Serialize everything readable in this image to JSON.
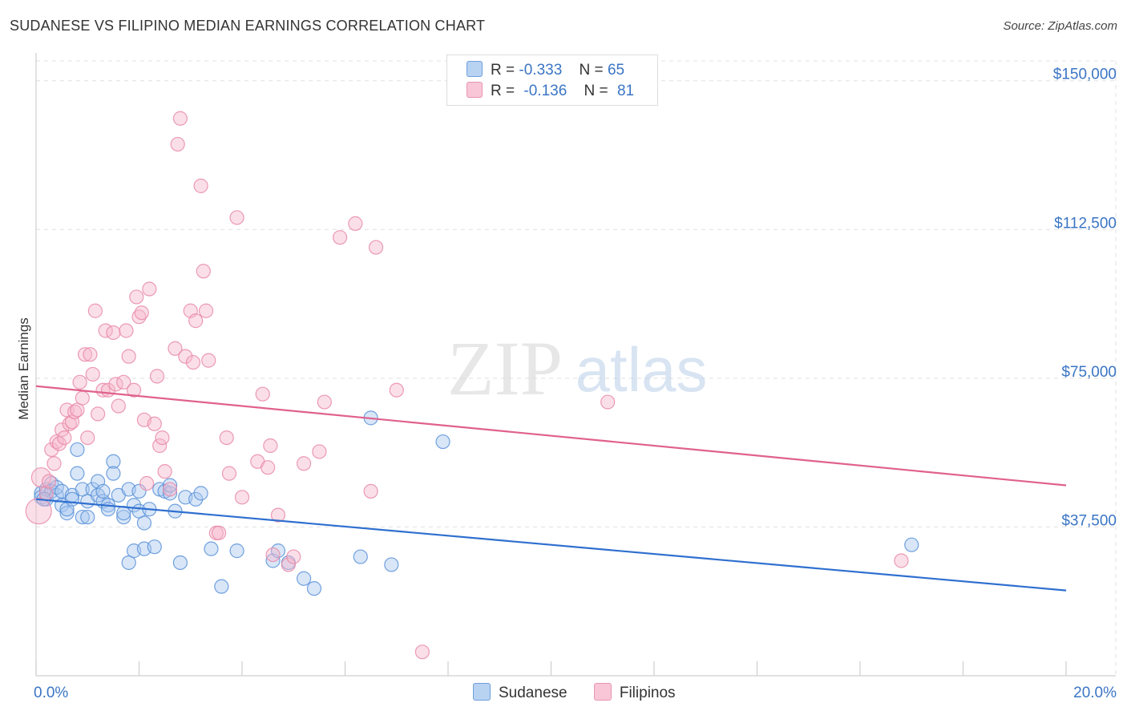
{
  "header": {
    "title": "SUDANESE VS FILIPINO MEDIAN EARNINGS CORRELATION CHART",
    "source": "Source: ZipAtlas.com"
  },
  "watermark": {
    "zip": "ZIP",
    "atlas": "atlas"
  },
  "legend": {
    "r_label": "R =",
    "n_label": "N =",
    "sudanese": {
      "r": "-0.333",
      "n": "65"
    },
    "filipinos": {
      "r": "-0.136",
      "n": "81"
    }
  },
  "colors": {
    "sudanese_fill": "#a8c8f0",
    "sudanese_stroke": "#5b92d8",
    "sudanese_line": "#2f6fcf",
    "filipino_fill": "#f6b8cc",
    "filipino_stroke": "#e88aa8",
    "filipino_line": "#e0618e",
    "axis_text": "#3a75c4",
    "grid": "#e0e0e0"
  },
  "chart_data": {
    "type": "scatter",
    "title": "SUDANESE VS FILIPINO MEDIAN EARNINGS CORRELATION CHART",
    "xlabel": "",
    "ylabel": "Median Earnings",
    "xlim": [
      0,
      20
    ],
    "ylim": [
      0,
      155000
    ],
    "x_tick_labels": [
      "0.0%",
      "20.0%"
    ],
    "y_ticks": [
      37500,
      75000,
      112500,
      150000
    ],
    "y_tick_labels": [
      "$37,500",
      "$75,000",
      "$112,500",
      "$150,000"
    ],
    "grid": true,
    "legend_position": "top-center",
    "series": [
      {
        "name": "Sudanese",
        "trend": {
          "x": [
            0,
            20
          ],
          "y": [
            44500,
            21500
          ]
        },
        "points": [
          [
            0.1,
            46000
          ],
          [
            0.1,
            45000
          ],
          [
            0.2,
            44500
          ],
          [
            0.2,
            47000
          ],
          [
            0.3,
            48500
          ],
          [
            0.3,
            46500
          ],
          [
            0.4,
            45500
          ],
          [
            0.4,
            47500
          ],
          [
            0.5,
            46500
          ],
          [
            0.5,
            43000
          ],
          [
            0.6,
            41000
          ],
          [
            0.6,
            42000
          ],
          [
            0.7,
            45500
          ],
          [
            0.7,
            44500
          ],
          [
            0.8,
            51000
          ],
          [
            0.8,
            57000
          ],
          [
            0.9,
            40000
          ],
          [
            0.9,
            47000
          ],
          [
            1.0,
            44000
          ],
          [
            1.0,
            40000
          ],
          [
            1.1,
            47000
          ],
          [
            1.2,
            49000
          ],
          [
            1.2,
            45500
          ],
          [
            1.3,
            44000
          ],
          [
            1.3,
            46500
          ],
          [
            1.4,
            43000
          ],
          [
            1.4,
            42000
          ],
          [
            1.5,
            54000
          ],
          [
            1.5,
            51000
          ],
          [
            1.6,
            45500
          ],
          [
            1.7,
            40000
          ],
          [
            1.7,
            41000
          ],
          [
            1.8,
            47000
          ],
          [
            1.8,
            28500
          ],
          [
            1.9,
            31500
          ],
          [
            1.9,
            43000
          ],
          [
            2.0,
            41500
          ],
          [
            2.0,
            46500
          ],
          [
            2.1,
            32000
          ],
          [
            2.1,
            38500
          ],
          [
            2.2,
            42000
          ],
          [
            2.3,
            32500
          ],
          [
            2.4,
            47000
          ],
          [
            2.5,
            46500
          ],
          [
            2.6,
            46000
          ],
          [
            2.6,
            48000
          ],
          [
            2.7,
            41500
          ],
          [
            2.8,
            28500
          ],
          [
            2.9,
            45000
          ],
          [
            3.1,
            44500
          ],
          [
            3.2,
            46000
          ],
          [
            3.4,
            32000
          ],
          [
            3.6,
            22500
          ],
          [
            3.9,
            31500
          ],
          [
            4.6,
            29000
          ],
          [
            4.7,
            31500
          ],
          [
            4.9,
            28500
          ],
          [
            5.2,
            24500
          ],
          [
            5.4,
            22000
          ],
          [
            6.3,
            30000
          ],
          [
            6.5,
            65000
          ],
          [
            6.9,
            28000
          ],
          [
            7.9,
            59000
          ],
          [
            17.0,
            33000
          ],
          [
            0.15,
            44500
          ]
        ]
      },
      {
        "name": "Filipinos",
        "trend": {
          "x": [
            0,
            20
          ],
          "y": [
            73000,
            48000
          ]
        },
        "points": [
          [
            0.05,
            41500
          ],
          [
            0.1,
            50000
          ],
          [
            0.2,
            46000
          ],
          [
            0.25,
            49000
          ],
          [
            0.3,
            57000
          ],
          [
            0.35,
            53500
          ],
          [
            0.4,
            59000
          ],
          [
            0.45,
            58500
          ],
          [
            0.5,
            62000
          ],
          [
            0.55,
            60000
          ],
          [
            0.6,
            67000
          ],
          [
            0.65,
            63500
          ],
          [
            0.7,
            64000
          ],
          [
            0.75,
            66500
          ],
          [
            0.8,
            67000
          ],
          [
            0.85,
            74000
          ],
          [
            0.9,
            70000
          ],
          [
            0.95,
            81000
          ],
          [
            1.0,
            60000
          ],
          [
            1.05,
            81000
          ],
          [
            1.1,
            76000
          ],
          [
            1.15,
            92000
          ],
          [
            1.2,
            66000
          ],
          [
            1.3,
            72000
          ],
          [
            1.35,
            87000
          ],
          [
            1.4,
            72000
          ],
          [
            1.5,
            86500
          ],
          [
            1.55,
            73500
          ],
          [
            1.6,
            68000
          ],
          [
            1.7,
            74000
          ],
          [
            1.75,
            87000
          ],
          [
            1.8,
            80500
          ],
          [
            1.9,
            72000
          ],
          [
            1.95,
            95500
          ],
          [
            2.0,
            90500
          ],
          [
            2.05,
            91500
          ],
          [
            2.1,
            64500
          ],
          [
            2.15,
            48500
          ],
          [
            2.2,
            97500
          ],
          [
            2.3,
            63500
          ],
          [
            2.35,
            75500
          ],
          [
            2.4,
            58000
          ],
          [
            2.45,
            60000
          ],
          [
            2.5,
            51500
          ],
          [
            2.6,
            47000
          ],
          [
            2.7,
            82500
          ],
          [
            2.75,
            134000
          ],
          [
            2.8,
            140500
          ],
          [
            2.9,
            80500
          ],
          [
            3.0,
            92000
          ],
          [
            3.05,
            79000
          ],
          [
            3.1,
            89500
          ],
          [
            3.2,
            123500
          ],
          [
            3.25,
            102000
          ],
          [
            3.3,
            92000
          ],
          [
            3.35,
            79500
          ],
          [
            3.5,
            36000
          ],
          [
            3.55,
            36000
          ],
          [
            3.7,
            60000
          ],
          [
            3.75,
            51000
          ],
          [
            3.9,
            115500
          ],
          [
            4.0,
            45000
          ],
          [
            4.3,
            54000
          ],
          [
            4.4,
            71000
          ],
          [
            4.5,
            52500
          ],
          [
            4.55,
            58000
          ],
          [
            4.6,
            30500
          ],
          [
            4.7,
            40500
          ],
          [
            4.9,
            28000
          ],
          [
            5.0,
            30000
          ],
          [
            5.2,
            53500
          ],
          [
            5.5,
            56500
          ],
          [
            5.6,
            69000
          ],
          [
            5.9,
            110500
          ],
          [
            6.2,
            114000
          ],
          [
            6.5,
            46500
          ],
          [
            6.6,
            108000
          ],
          [
            7.0,
            72000
          ],
          [
            7.5,
            6000
          ],
          [
            11.1,
            69000
          ],
          [
            16.8,
            29000
          ]
        ]
      }
    ]
  }
}
